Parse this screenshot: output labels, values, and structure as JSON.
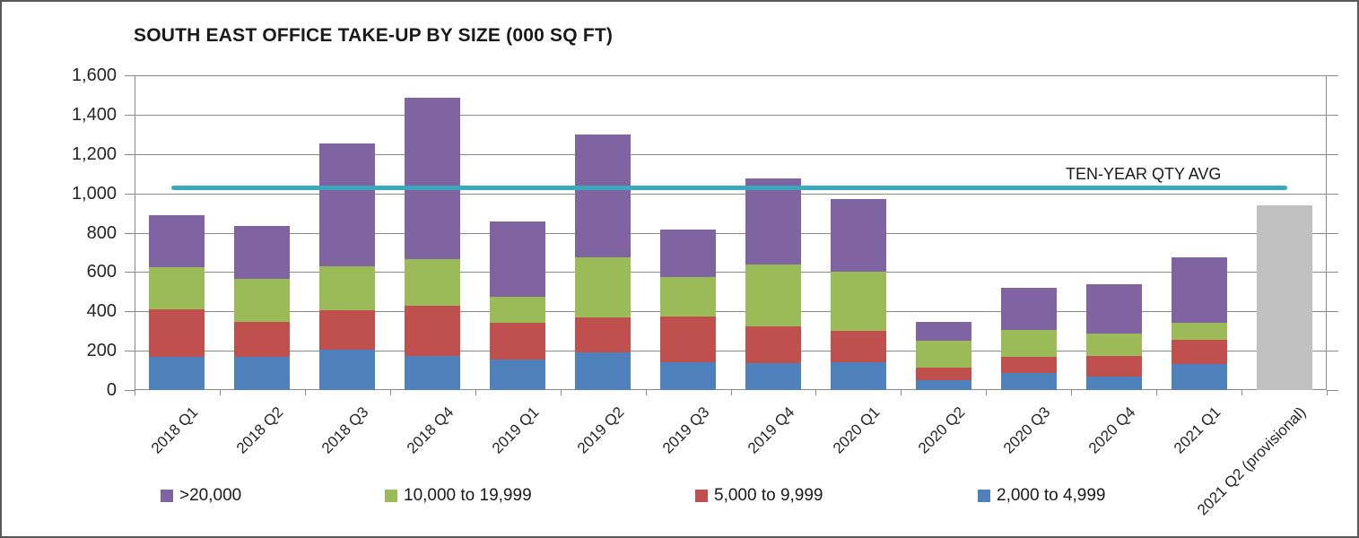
{
  "title": "SOUTH EAST OFFICE TAKE-UP BY SIZE (000 SQ FT)",
  "chart_data": {
    "type": "bar",
    "stacked": true,
    "title": "SOUTH EAST OFFICE TAKE-UP BY SIZE (000 SQ FT)",
    "ylim": [
      0,
      1600
    ],
    "ytick_step": 200,
    "y_ticks": [
      "0",
      "200",
      "400",
      "600",
      "800",
      "1,000",
      "1,200",
      "1,400",
      "1,600"
    ],
    "categories": [
      "2018 Q1",
      "2018 Q2",
      "2018 Q3",
      "2018 Q4",
      "2019 Q1",
      "2019 Q2",
      "2019 Q3",
      "2019 Q4",
      "2020 Q1",
      "2020 Q2",
      "2020 Q3",
      "2020 Q4",
      "2021 Q1",
      "2021 Q2 (provisional)"
    ],
    "series": [
      {
        "name": "2,000 to 4,999",
        "color": "#4F81BD",
        "values": [
          170,
          170,
          205,
          175,
          155,
          190,
          140,
          135,
          140,
          50,
          85,
          70,
          130
        ]
      },
      {
        "name": "5,000 to 9,999",
        "color": "#C0504D",
        "values": [
          240,
          175,
          200,
          255,
          185,
          180,
          235,
          190,
          160,
          65,
          85,
          105,
          125
        ]
      },
      {
        "name": "10,000 to 19,999",
        "color": "#9BBB59",
        "values": [
          215,
          220,
          225,
          235,
          135,
          305,
          200,
          315,
          300,
          135,
          135,
          110,
          85
        ]
      },
      {
        "name": ">20,000",
        "color": "#8064A2",
        "values": [
          265,
          270,
          625,
          820,
          380,
          625,
          240,
          435,
          370,
          95,
          215,
          255,
          335
        ]
      }
    ],
    "provisional_bar": {
      "category": "2021 Q2 (provisional)",
      "value": 940,
      "color": "#C1C1C1"
    },
    "average_line": {
      "label": "TEN-YEAR QTY AVG",
      "value": 1030,
      "color": "#3CA8BE"
    },
    "grid": true,
    "legend_position": "bottom"
  }
}
